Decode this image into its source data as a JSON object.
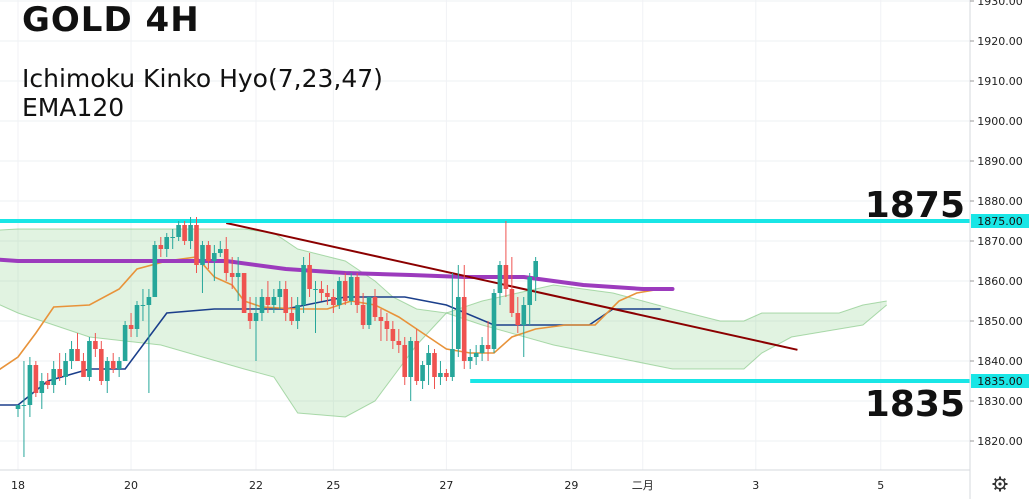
{
  "chart_data": {
    "type": "candlestick",
    "title": "GOLD 4H",
    "indicators": [
      "Ichimoku Kinko Hyo(7,23,47)",
      "EMA120"
    ],
    "y_ticks": [
      1820,
      1830,
      1840,
      1850,
      1860,
      1870,
      1880,
      1890,
      1900,
      1910,
      1920,
      1930
    ],
    "y_tick_labels": [
      "1820.00",
      "1830.00",
      "1840.00",
      "1850.00",
      "1860.00",
      "1870.00",
      "1880.00",
      "1890.00",
      "1900.00",
      "1910.00",
      "1920.00",
      "1930.00"
    ],
    "x_ticks": [
      {
        "i": 0,
        "label": "18"
      },
      {
        "i": 19,
        "label": "20"
      },
      {
        "i": 40,
        "label": "22"
      },
      {
        "i": 53,
        "label": "25"
      },
      {
        "i": 72,
        "label": "27"
      },
      {
        "i": 93,
        "label": "29"
      },
      {
        "i": 105,
        "label": "二月"
      },
      {
        "i": 124,
        "label": "3"
      },
      {
        "i": 145,
        "label": "5"
      }
    ],
    "ylim": [
      1815,
      1933
    ],
    "levels": [
      {
        "value": 1875,
        "label": "1875",
        "badge": "1875.00",
        "color": "#19e6e6"
      },
      {
        "value": 1835,
        "label": "1835",
        "badge": "1835.00",
        "color": "#19e6e6"
      }
    ],
    "trendline": {
      "start": [
        35,
        1874.5
      ],
      "end": [
        131,
        1842.8
      ],
      "color": "#8b0000"
    },
    "up_color": "#26a69a",
    "down_color": "#ef5350",
    "candles": [
      [
        1828.0,
        1829.0,
        1826.0,
        1829.0
      ],
      [
        1829.0,
        1840.0,
        1816.0,
        1829.0
      ],
      [
        1829.0,
        1841.0,
        1826.0,
        1839.0
      ],
      [
        1839.0,
        1840.0,
        1831.0,
        1832.0
      ],
      [
        1832.0,
        1837.0,
        1828.0,
        1835.0
      ],
      [
        1835.0,
        1837.0,
        1833.0,
        1834.0
      ],
      [
        1834.0,
        1840.0,
        1832.0,
        1838.0
      ],
      [
        1838.0,
        1842.0,
        1835.0,
        1836.0
      ],
      [
        1836.0,
        1842.0,
        1834.0,
        1840.0
      ],
      [
        1840.0,
        1845.0,
        1838.0,
        1843.0
      ],
      [
        1843.0,
        1847.0,
        1840.0,
        1840.0
      ],
      [
        1840.0,
        1842.0,
        1837.0,
        1836.0
      ],
      [
        1836.0,
        1846.0,
        1835.0,
        1845.0
      ],
      [
        1845.0,
        1847.0,
        1841.0,
        1843.0
      ],
      [
        1843.0,
        1845.0,
        1834.0,
        1835.0
      ],
      [
        1835.0,
        1841.0,
        1832.0,
        1840.0
      ],
      [
        1840.0,
        1842.0,
        1837.0,
        1838.0
      ],
      [
        1838.0,
        1841.0,
        1836.0,
        1840.0
      ],
      [
        1840.0,
        1850.0,
        1840.0,
        1849.0
      ],
      [
        1849.0,
        1852.0,
        1846.0,
        1848.0
      ],
      [
        1848.0,
        1855.0,
        1846.0,
        1854.0
      ],
      [
        1854.0,
        1858.0,
        1850.0,
        1854.0
      ],
      [
        1854.0,
        1858.0,
        1832.0,
        1856.0
      ],
      [
        1856.0,
        1870.0,
        1856.0,
        1869.0
      ],
      [
        1869.0,
        1871.0,
        1866.0,
        1868.0
      ],
      [
        1868.0,
        1872.0,
        1866.0,
        1871.0
      ],
      [
        1871.0,
        1873.0,
        1868.0,
        1871.0
      ],
      [
        1871.0,
        1875.0,
        1870.0,
        1874.0
      ],
      [
        1874.0,
        1875.0,
        1869.0,
        1870.0
      ],
      [
        1870.0,
        1876.0,
        1868.0,
        1874.0
      ],
      [
        1874.0,
        1876.0,
        1862.0,
        1864.0
      ],
      [
        1864.0,
        1870.0,
        1857.0,
        1869.0
      ],
      [
        1869.0,
        1870.0,
        1863.0,
        1865.0
      ],
      [
        1865.0,
        1869.0,
        1860.0,
        1867.0
      ],
      [
        1867.0,
        1870.0,
        1866.0,
        1868.0
      ],
      [
        1868.0,
        1871.0,
        1860.0,
        1862.0
      ],
      [
        1862.0,
        1866.0,
        1858.0,
        1861.0
      ],
      [
        1861.0,
        1866.0,
        1855.0,
        1862.0
      ],
      [
        1862.0,
        1862.0,
        1852.0,
        1852.0
      ],
      [
        1852.0,
        1856.0,
        1848.0,
        1850.0
      ],
      [
        1850.0,
        1856.0,
        1840.0,
        1852.0
      ],
      [
        1852.0,
        1858.0,
        1850.0,
        1856.0
      ],
      [
        1856.0,
        1860.0,
        1852.0,
        1854.0
      ],
      [
        1854.0,
        1858.0,
        1852.0,
        1856.0
      ],
      [
        1856.0,
        1860.0,
        1853.0,
        1858.0
      ],
      [
        1858.0,
        1860.0,
        1850.0,
        1852.0
      ],
      [
        1852.0,
        1856.0,
        1849.0,
        1850.0
      ],
      [
        1850.0,
        1856.0,
        1848.0,
        1854.0
      ],
      [
        1854.0,
        1866.0,
        1852.0,
        1864.0
      ],
      [
        1864.0,
        1867.0,
        1856.0,
        1858.0
      ],
      [
        1858.0,
        1860.0,
        1847.0,
        1858.0
      ],
      [
        1858.0,
        1860.0,
        1855.0,
        1857.0
      ],
      [
        1857.0,
        1859.0,
        1854.0,
        1856.0
      ],
      [
        1856.0,
        1858.0,
        1852.0,
        1854.0
      ],
      [
        1854.0,
        1861.0,
        1853.0,
        1860.0
      ],
      [
        1860.0,
        1862.0,
        1854.0,
        1855.0
      ],
      [
        1855.0,
        1862.0,
        1854.0,
        1861.0
      ],
      [
        1861.0,
        1862.0,
        1852.0,
        1854.0
      ],
      [
        1854.0,
        1857.0,
        1848.0,
        1849.0
      ],
      [
        1849.0,
        1856.0,
        1848.0,
        1856.0
      ],
      [
        1856.0,
        1858.0,
        1850.0,
        1851.0
      ],
      [
        1851.0,
        1853.0,
        1845.0,
        1850.0
      ],
      [
        1850.0,
        1852.0,
        1845.0,
        1848.0
      ],
      [
        1848.0,
        1850.0,
        1843.0,
        1845.0
      ],
      [
        1845.0,
        1848.0,
        1842.0,
        1844.0
      ],
      [
        1844.0,
        1846.0,
        1834.0,
        1836.0
      ],
      [
        1836.0,
        1846.0,
        1830.0,
        1845.0
      ],
      [
        1845.0,
        1848.0,
        1834.0,
        1835.0
      ],
      [
        1835.0,
        1840.0,
        1833.0,
        1839.0
      ],
      [
        1839.0,
        1844.0,
        1834.0,
        1842.0
      ],
      [
        1842.0,
        1843.0,
        1833.0,
        1836.0
      ],
      [
        1836.0,
        1840.0,
        1834.0,
        1837.0
      ],
      [
        1837.0,
        1838.0,
        1835.0,
        1836.0
      ],
      [
        1836.0,
        1862.0,
        1835.0,
        1843.0
      ],
      [
        1843.0,
        1864.0,
        1841.0,
        1856.0
      ],
      [
        1856.0,
        1864.0,
        1838.0,
        1840.0
      ],
      [
        1840.0,
        1843.0,
        1838.0,
        1841.0
      ],
      [
        1841.0,
        1844.0,
        1839.0,
        1842.0
      ],
      [
        1842.0,
        1846.0,
        1840.0,
        1844.0
      ],
      [
        1844.0,
        1850.0,
        1840.0,
        1843.0
      ],
      [
        1843.0,
        1858.0,
        1842.0,
        1857.0
      ],
      [
        1857.0,
        1865.0,
        1854.0,
        1864.0
      ],
      [
        1864.0,
        1875.0,
        1856.0,
        1858.0
      ],
      [
        1858.0,
        1866.0,
        1851.0,
        1852.0
      ],
      [
        1852.0,
        1856.0,
        1847.0,
        1849.0
      ],
      [
        1849.0,
        1856.0,
        1841.0,
        1854.0
      ],
      [
        1854.0,
        1862.0,
        1849.0,
        1861.0
      ],
      [
        1861.0,
        1866.0,
        1855.0,
        1865.0
      ]
    ],
    "ema120": [
      [
        -38,
        1869.0
      ],
      [
        -20,
        1867.0
      ],
      [
        0,
        1865.0
      ],
      [
        15,
        1865.0
      ],
      [
        25,
        1865.0
      ],
      [
        35,
        1865.0
      ],
      [
        45,
        1863.0
      ],
      [
        55,
        1862.0
      ],
      [
        66,
        1861.5
      ],
      [
        75,
        1861.0
      ],
      [
        85,
        1861.0
      ],
      [
        95,
        1859.0
      ],
      [
        105,
        1858.0
      ],
      [
        110,
        1858.0
      ]
    ],
    "tenkan": [
      [
        -22,
        1840.5
      ],
      [
        -18,
        1834.0
      ],
      [
        -15,
        1822.0
      ],
      [
        -11,
        1823.0
      ],
      [
        -8,
        1830.0
      ],
      [
        -4,
        1837.0
      ],
      [
        0,
        1841.0
      ],
      [
        3,
        1847.0
      ],
      [
        6,
        1853.5
      ],
      [
        12,
        1854.0
      ],
      [
        17,
        1858.0
      ],
      [
        20,
        1863.0
      ],
      [
        25,
        1865.0
      ],
      [
        30,
        1866.0
      ],
      [
        33,
        1861.0
      ],
      [
        36,
        1859.0
      ],
      [
        38,
        1855.0
      ],
      [
        41,
        1853.5
      ],
      [
        47,
        1853.0
      ],
      [
        52,
        1853.0
      ],
      [
        56,
        1855.0
      ],
      [
        60,
        1854.0
      ],
      [
        64,
        1851.0
      ],
      [
        68,
        1847.0
      ],
      [
        72,
        1843.0
      ],
      [
        76,
        1842.0
      ],
      [
        80,
        1842.0
      ],
      [
        83,
        1846.0
      ],
      [
        87,
        1848.0
      ],
      [
        92,
        1849.0
      ],
      [
        97,
        1849.0
      ],
      [
        101,
        1855.0
      ],
      [
        104,
        1857.0
      ],
      [
        108,
        1858.0
      ]
    ],
    "kijun": [
      [
        -48,
        1844.0
      ],
      [
        -35,
        1844.0
      ],
      [
        -30,
        1838.0
      ],
      [
        -20,
        1838.0
      ],
      [
        -15,
        1832.0
      ],
      [
        -10,
        1832.0
      ],
      [
        -5,
        1829.0
      ],
      [
        0,
        1829.0
      ],
      [
        5,
        1835.0
      ],
      [
        12,
        1838.0
      ],
      [
        18,
        1838.0
      ],
      [
        25,
        1852.0
      ],
      [
        33,
        1853.0
      ],
      [
        45,
        1853.0
      ],
      [
        55,
        1856.0
      ],
      [
        65,
        1856.0
      ],
      [
        72,
        1854.0
      ],
      [
        80,
        1849.0
      ],
      [
        92,
        1849.0
      ],
      [
        96,
        1849.0
      ],
      [
        100,
        1853.0
      ],
      [
        108,
        1853.0
      ]
    ],
    "chikou": [
      [
        -60,
        1852.0
      ],
      [
        -55,
        1854.0
      ],
      [
        -50,
        1856.0
      ],
      [
        -45,
        1858.0
      ],
      [
        -40,
        1855.0
      ],
      [
        -35,
        1852.0
      ],
      [
        -32,
        1850.0
      ]
    ],
    "cloud": [
      [
        -22,
        1870.0,
        1866.0
      ],
      [
        -12,
        1872.0,
        1860.0
      ],
      [
        0,
        1873.0,
        1852.0
      ],
      [
        12,
        1873.0,
        1846.0
      ],
      [
        24,
        1873.0,
        1844.0
      ],
      [
        38,
        1873.0,
        1838.0
      ],
      [
        43,
        1872.0,
        1836.0
      ],
      [
        47,
        1868.0,
        1827.0
      ],
      [
        55,
        1865.0,
        1826.0
      ],
      [
        60,
        1860.0,
        1830.0
      ],
      [
        63,
        1856.0,
        1836.0
      ],
      [
        67,
        1853.0,
        1844.0
      ],
      [
        72,
        1852.0,
        1852.0
      ],
      [
        78,
        1855.0,
        1849.0
      ],
      [
        90,
        1859.0,
        1844.0
      ],
      [
        100,
        1857.0,
        1841.0
      ],
      [
        110,
        1853.0,
        1838.0
      ],
      [
        118,
        1850.0,
        1838.0
      ],
      [
        122,
        1850.0,
        1838.0
      ],
      [
        125,
        1852.0,
        1842.0
      ],
      [
        130,
        1852.0,
        1846.0
      ],
      [
        138,
        1852.0,
        1848.0
      ],
      [
        142,
        1854.0,
        1849.0
      ],
      [
        146,
        1855.0,
        1854.0
      ]
    ],
    "cloud_green": "rgba(120,200,120,0.22)",
    "cloud_red": "rgba(255,120,140,0.16)",
    "ema_color": "#9c3bbd",
    "tenkan_color": "#e8933a",
    "kijun_color": "#1b3f8b",
    "chikou_color": "#3b9c5a",
    "settings_icon": "gear-icon"
  }
}
